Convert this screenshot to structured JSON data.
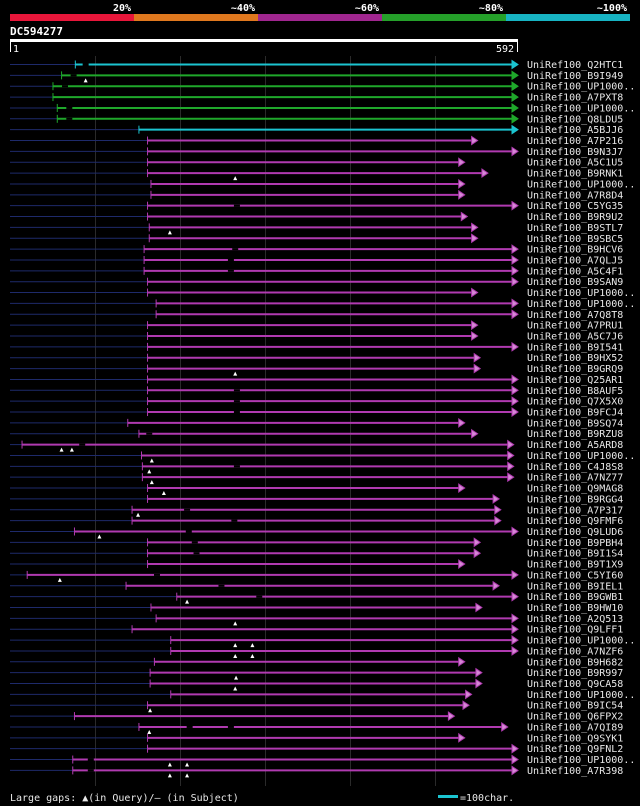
{
  "legend": {
    "labels": [
      "20%",
      "~40%",
      "~60%",
      "~80%",
      "~100%"
    ],
    "colors": [
      "#e8163a",
      "#e0781e",
      "#a0268f",
      "#25a02a",
      "#17b3c3"
    ]
  },
  "query": {
    "name": "DC594277",
    "start_label": "1",
    "end_label": "592",
    "length": 592
  },
  "footer": {
    "gaps_text": "Large gaps: ▲(in Query)/– (in Subject)",
    "scale_text": "=100char."
  },
  "colors": {
    "bar_cyan": "#1bc4d0",
    "bar_green": "#1fa82b",
    "bar_purple": "#b03ab0",
    "arrow_fill": "#d488d4",
    "background": "#000000",
    "text": "#ffffff",
    "label_text": "#e8e8e8",
    "thin_line": "#1e2a6a",
    "grid": "#2a2a2a"
  },
  "hits": [
    {
      "name": "UniRef100_Q2HTC1",
      "start": 77,
      "end": 592,
      "color": "cyan",
      "lead": 10,
      "tri": [],
      "slash": [
        89
      ]
    },
    {
      "name": "UniRef100_B9I949",
      "start": 61,
      "end": 592,
      "color": "green",
      "lead": 10,
      "tri": [
        89
      ],
      "slash": [
        75
      ]
    },
    {
      "name": "UniRef100_UP1000..",
      "start": 51,
      "end": 592,
      "color": "green",
      "lead": 10,
      "tri": [],
      "slash": [
        65
      ]
    },
    {
      "name": "UniRef100_A7PXT8",
      "start": 51,
      "end": 592,
      "color": "green",
      "lead": 10,
      "tri": [],
      "slash": []
    },
    {
      "name": "UniRef100_UP1000..",
      "start": 56,
      "end": 592,
      "color": "green",
      "lead": 10,
      "tri": [],
      "slash": [
        70
      ]
    },
    {
      "name": "UniRef100_Q8LDU5",
      "start": 56,
      "end": 592,
      "color": "green",
      "lead": 10,
      "tri": [],
      "slash": [
        70
      ]
    },
    {
      "name": "UniRef100_A5BJJ6",
      "start": 151,
      "end": 592,
      "color": "cyan",
      "lead": 10,
      "tri": [],
      "slash": []
    },
    {
      "name": "UniRef100_A7P216",
      "start": 161,
      "end": 545,
      "color": "purple",
      "lead": 10,
      "tri": [],
      "slash": []
    },
    {
      "name": "UniRef100_B9N3J7",
      "start": 161,
      "end": 592,
      "color": "purple",
      "lead": 10,
      "tri": [],
      "slash": []
    },
    {
      "name": "UniRef100_A5C1U5",
      "start": 161,
      "end": 530,
      "color": "purple",
      "lead": 10,
      "tri": [],
      "slash": []
    },
    {
      "name": "UniRef100_B9RNK1",
      "start": 161,
      "end": 557,
      "color": "purple",
      "lead": 10,
      "tri": [
        263
      ],
      "slash": []
    },
    {
      "name": "UniRef100_UP1000..",
      "start": 165,
      "end": 530,
      "color": "purple",
      "lead": 10,
      "tri": [],
      "slash": []
    },
    {
      "name": "UniRef100_A7R8D4",
      "start": 165,
      "end": 530,
      "color": "purple",
      "lead": 10,
      "tri": [],
      "slash": []
    },
    {
      "name": "UniRef100_C5YG35",
      "start": 161,
      "end": 592,
      "color": "purple",
      "lead": 10,
      "tri": [],
      "slash": [
        265
      ]
    },
    {
      "name": "UniRef100_B9R9U2",
      "start": 161,
      "end": 533,
      "color": "purple",
      "lead": 10,
      "tri": [],
      "slash": []
    },
    {
      "name": "UniRef100_B9STL7",
      "start": 163,
      "end": 545,
      "color": "purple",
      "lead": 10,
      "tri": [
        187
      ],
      "slash": []
    },
    {
      "name": "UniRef100_B9SBC5",
      "start": 163,
      "end": 545,
      "color": "purple",
      "lead": 10,
      "tri": [],
      "slash": []
    },
    {
      "name": "UniRef100_B9HCV6",
      "start": 157,
      "end": 592,
      "color": "purple",
      "lead": 10,
      "tri": [],
      "slash": [
        263
      ]
    },
    {
      "name": "UniRef100_A7QLJ5",
      "start": 157,
      "end": 592,
      "color": "purple",
      "lead": 10,
      "tri": [],
      "slash": [
        258
      ]
    },
    {
      "name": "UniRef100_A5C4F1",
      "start": 157,
      "end": 592,
      "color": "purple",
      "lead": 10,
      "tri": [],
      "slash": [
        258
      ]
    },
    {
      "name": "UniRef100_B9SAN9",
      "start": 161,
      "end": 592,
      "color": "purple",
      "lead": 10,
      "tri": [],
      "slash": []
    },
    {
      "name": "UniRef100_UP1000..",
      "start": 161,
      "end": 545,
      "color": "purple",
      "lead": 10,
      "tri": [],
      "slash": []
    },
    {
      "name": "UniRef100_UP1000..",
      "start": 171,
      "end": 592,
      "color": "purple",
      "lead": 10,
      "tri": [],
      "slash": []
    },
    {
      "name": "UniRef100_A7Q8T8",
      "start": 171,
      "end": 592,
      "color": "purple",
      "lead": 10,
      "tri": [],
      "slash": []
    },
    {
      "name": "UniRef100_A7PRU1",
      "start": 161,
      "end": 545,
      "color": "purple",
      "lead": 10,
      "tri": [],
      "slash": []
    },
    {
      "name": "UniRef100_A5C7J6",
      "start": 161,
      "end": 545,
      "color": "purple",
      "lead": 10,
      "tri": [],
      "slash": []
    },
    {
      "name": "UniRef100_B9I541",
      "start": 161,
      "end": 592,
      "color": "purple",
      "lead": 10,
      "tri": [],
      "slash": []
    },
    {
      "name": "UniRef100_B9HX52",
      "start": 161,
      "end": 548,
      "color": "purple",
      "lead": 10,
      "tri": [],
      "slash": []
    },
    {
      "name": "UniRef100_B9GRQ9",
      "start": 161,
      "end": 548,
      "color": "purple",
      "lead": 10,
      "tri": [
        263
      ],
      "slash": []
    },
    {
      "name": "UniRef100_Q25AR1",
      "start": 161,
      "end": 592,
      "color": "purple",
      "lead": 10,
      "tri": [],
      "slash": []
    },
    {
      "name": "UniRef100_B8AUF5",
      "start": 161,
      "end": 592,
      "color": "purple",
      "lead": 10,
      "tri": [],
      "slash": [
        265
      ]
    },
    {
      "name": "UniRef100_Q7X5X0",
      "start": 161,
      "end": 592,
      "color": "purple",
      "lead": 10,
      "tri": [],
      "slash": [
        265
      ]
    },
    {
      "name": "UniRef100_B9FCJ4",
      "start": 161,
      "end": 592,
      "color": "purple",
      "lead": 10,
      "tri": [],
      "slash": [
        265
      ]
    },
    {
      "name": "UniRef100_B9SQ74",
      "start": 138,
      "end": 530,
      "color": "purple",
      "lead": 10,
      "tri": [],
      "slash": []
    },
    {
      "name": "UniRef100_B9RZU8",
      "start": 151,
      "end": 545,
      "color": "purple",
      "lead": 10,
      "tri": [],
      "slash": [
        163
      ]
    },
    {
      "name": "UniRef100_A5ARD8",
      "start": 15,
      "end": 587,
      "color": "purple",
      "lead": 10,
      "tri": [
        61,
        73
      ],
      "slash": [
        85
      ]
    },
    {
      "name": "UniRef100_UP1000..",
      "start": 154,
      "end": 587,
      "color": "purple",
      "lead": 10,
      "tri": [
        166
      ],
      "slash": []
    },
    {
      "name": "UniRef100_C4J8S8",
      "start": 155,
      "end": 587,
      "color": "purple",
      "lead": 10,
      "tri": [
        163
      ],
      "slash": [
        265
      ]
    },
    {
      "name": "UniRef100_A7NZ77",
      "start": 155,
      "end": 587,
      "color": "purple",
      "lead": 10,
      "tri": [
        166
      ],
      "slash": []
    },
    {
      "name": "UniRef100_Q9MAG8",
      "start": 161,
      "end": 530,
      "color": "purple",
      "lead": 10,
      "tri": [
        180
      ],
      "slash": []
    },
    {
      "name": "UniRef100_B9RGG4",
      "start": 161,
      "end": 570,
      "color": "purple",
      "lead": 10,
      "tri": [],
      "slash": []
    },
    {
      "name": "UniRef100_A7P317",
      "start": 143,
      "end": 572,
      "color": "purple",
      "lead": 10,
      "tri": [
        150
      ],
      "slash": [
        207
      ]
    },
    {
      "name": "UniRef100_Q9FMF6",
      "start": 143,
      "end": 572,
      "color": "purple",
      "lead": 10,
      "tri": [],
      "slash": [
        262
      ]
    },
    {
      "name": "UniRef100_Q9LUD6",
      "start": 76,
      "end": 592,
      "color": "purple",
      "lead": 10,
      "tri": [
        105
      ],
      "slash": [
        209
      ]
    },
    {
      "name": "UniRef100_B9PBH4",
      "start": 161,
      "end": 548,
      "color": "purple",
      "lead": 10,
      "tri": [],
      "slash": [
        216
      ]
    },
    {
      "name": "UniRef100_B9I1S4",
      "start": 161,
      "end": 548,
      "color": "purple",
      "lead": 10,
      "tri": [],
      "slash": [
        218
      ]
    },
    {
      "name": "UniRef100_B9T1X9",
      "start": 161,
      "end": 530,
      "color": "purple",
      "lead": 10,
      "tri": [],
      "slash": []
    },
    {
      "name": "UniRef100_C5YI60",
      "start": 21,
      "end": 592,
      "color": "purple",
      "lead": 10,
      "tri": [
        59
      ],
      "slash": [
        172
      ]
    },
    {
      "name": "UniRef100_B9IEL1",
      "start": 136,
      "end": 570,
      "color": "purple",
      "lead": 10,
      "tri": [],
      "slash": [
        247
      ]
    },
    {
      "name": "UniRef100_B9GWB1",
      "start": 195,
      "end": 592,
      "color": "purple",
      "lead": 10,
      "tri": [
        207
      ],
      "slash": [
        291
      ]
    },
    {
      "name": "UniRef100_B9HW10",
      "start": 165,
      "end": 550,
      "color": "purple",
      "lead": 10,
      "tri": [],
      "slash": []
    },
    {
      "name": "UniRef100_A2Q513",
      "start": 171,
      "end": 592,
      "color": "purple",
      "lead": 10,
      "tri": [
        263
      ],
      "slash": []
    },
    {
      "name": "UniRef100_Q9LFF1",
      "start": 143,
      "end": 592,
      "color": "purple",
      "lead": 10,
      "tri": [],
      "slash": []
    },
    {
      "name": "UniRef100_UP1000..",
      "start": 188,
      "end": 592,
      "color": "purple",
      "lead": 10,
      "tri": [
        263,
        283
      ],
      "slash": []
    },
    {
      "name": "UniRef100_A7NZF6",
      "start": 188,
      "end": 592,
      "color": "purple",
      "lead": 10,
      "tri": [
        263,
        283
      ],
      "slash": []
    },
    {
      "name": "UniRef100_B9H682",
      "start": 169,
      "end": 530,
      "color": "purple",
      "lead": 10,
      "tri": [],
      "slash": []
    },
    {
      "name": "UniRef100_B9R997",
      "start": 164,
      "end": 550,
      "color": "purple",
      "lead": 10,
      "tri": [
        264
      ],
      "slash": []
    },
    {
      "name": "UniRef100_Q9CA58",
      "start": 164,
      "end": 550,
      "color": "purple",
      "lead": 10,
      "tri": [
        263
      ],
      "slash": []
    },
    {
      "name": "UniRef100_UP1000..",
      "start": 188,
      "end": 538,
      "color": "purple",
      "lead": 10,
      "tri": [],
      "slash": []
    },
    {
      "name": "UniRef100_B9IC54",
      "start": 161,
      "end": 535,
      "color": "purple",
      "lead": 10,
      "tri": [
        164
      ],
      "slash": []
    },
    {
      "name": "UniRef100_Q6FPX2",
      "start": 76,
      "end": 518,
      "color": "purple",
      "lead": 10,
      "tri": [],
      "slash": []
    },
    {
      "name": "UniRef100_A7QI89",
      "start": 151,
      "end": 580,
      "color": "purple",
      "lead": 10,
      "tri": [
        163
      ],
      "slash": [
        210,
        258
      ]
    },
    {
      "name": "UniRef100_Q9SYK1",
      "start": 161,
      "end": 530,
      "color": "purple",
      "lead": 10,
      "tri": [],
      "slash": []
    },
    {
      "name": "UniRef100_Q9FNL2",
      "start": 161,
      "end": 592,
      "color": "purple",
      "lead": 10,
      "tri": [],
      "slash": []
    },
    {
      "name": "UniRef100_UP1000..",
      "start": 74,
      "end": 592,
      "color": "purple",
      "lead": 10,
      "tri": [
        187,
        207
      ],
      "slash": [
        95
      ]
    },
    {
      "name": "UniRef100_A7R398",
      "start": 74,
      "end": 592,
      "color": "purple",
      "lead": 10,
      "tri": [
        187,
        207
      ],
      "slash": [
        95
      ]
    }
  ]
}
